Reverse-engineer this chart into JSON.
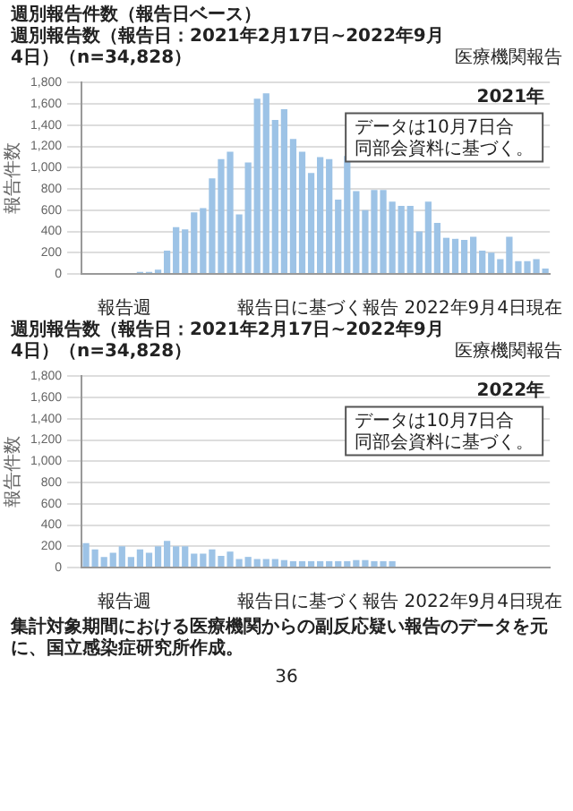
{
  "chart_data": [
    {
      "type": "bar",
      "title": "週別報告件数（報告日ベース）",
      "subtitle": "週別報告数（報告日：2021年2月17日~2022年9月4日）（n=34,828）",
      "xlabel": "報告週",
      "ylabel": "報告件数",
      "annotations": [
        "医療機関報告",
        "2021年",
        "データは10月7日合同部会資料に基づく。",
        "報告日に基づく報告 2022年9月4日現在"
      ],
      "categories": [
        null,
        null,
        null,
        null,
        null,
        null,
        null,
        null,
        null,
        null,
        null,
        null,
        null,
        null,
        null,
        null,
        null,
        null,
        null,
        null,
        null,
        null,
        null,
        null,
        null,
        null,
        null,
        null,
        null,
        null,
        null,
        null,
        null,
        null,
        null,
        null,
        null,
        null,
        null,
        null,
        null,
        null,
        null,
        null,
        null,
        null,
        null,
        null,
        null,
        null,
        null,
        null
      ],
      "values": [
        0,
        0,
        0,
        0,
        0,
        0,
        20,
        20,
        40,
        220,
        440,
        420,
        580,
        620,
        900,
        1080,
        1150,
        560,
        1050,
        1650,
        1700,
        1450,
        1550,
        1270,
        1150,
        950,
        1100,
        1080,
        700,
        1110,
        780,
        600,
        790,
        790,
        680,
        640,
        640,
        400,
        680,
        480,
        340,
        330,
        320,
        350,
        220,
        200,
        140,
        350,
        120,
        120,
        140,
        50
      ],
      "color": "#9dc3e6",
      "ylim": [
        0,
        1800
      ],
      "yticks": [
        0,
        200,
        400,
        600,
        800,
        {
          "value": 1000,
          "label": "1,000"
        },
        {
          "value": 1200,
          "label": "1,200"
        },
        {
          "value": 1400,
          "label": "1,400"
        },
        {
          "value": 1600,
          "label": "1,600"
        },
        {
          "value": 1800,
          "label": "1,800"
        }
      ],
      "grid": "y"
    },
    {
      "type": "bar",
      "title": "週別報告数（報告日：2021年2月17日~2022年9月4日）（n=34,828）",
      "xlabel": "報告週",
      "ylabel": "報告件数",
      "annotations": [
        "医療機関報告",
        "2022年",
        "データは10月7日合同部会資料に基づく。",
        "報告日に基づく報告 2022年9月4日現在",
        "集計対象期間における医療機関からの副反応疑い報告のデータを元に、国立感染症研究所作成。",
        "36"
      ],
      "categories": [
        null,
        null,
        null,
        null,
        null,
        null,
        null,
        null,
        null,
        null,
        null,
        null,
        null,
        null,
        null,
        null,
        null,
        null,
        null,
        null,
        null,
        null,
        null,
        null,
        null,
        null,
        null,
        null,
        null,
        null,
        null,
        null,
        null,
        null,
        null,
        null,
        null,
        null,
        null,
        null,
        null,
        null,
        null,
        null,
        null,
        null,
        null,
        null,
        null,
        null,
        null,
        null
      ],
      "values": [
        230,
        170,
        100,
        140,
        200,
        100,
        170,
        140,
        200,
        250,
        200,
        200,
        130,
        130,
        170,
        110,
        150,
        80,
        100,
        80,
        80,
        80,
        70,
        60,
        60,
        60,
        60,
        60,
        60,
        60,
        70,
        70,
        60,
        60,
        60,
        null,
        null,
        null,
        null,
        null,
        null,
        null,
        null,
        null,
        null,
        null,
        null,
        null,
        null,
        null,
        null,
        null
      ],
      "color": "#9dc3e6",
      "ylim": [
        0,
        1800
      ],
      "yticks": [
        0,
        200,
        400,
        600,
        800,
        {
          "value": 1000,
          "label": "1,000"
        },
        {
          "value": 1200,
          "label": "1,200"
        },
        {
          "value": 1400,
          "label": "1,400"
        },
        {
          "value": 1600,
          "label": "1,600"
        },
        {
          "value": 1800,
          "label": "1,800"
        }
      ],
      "grid": "y"
    }
  ]
}
